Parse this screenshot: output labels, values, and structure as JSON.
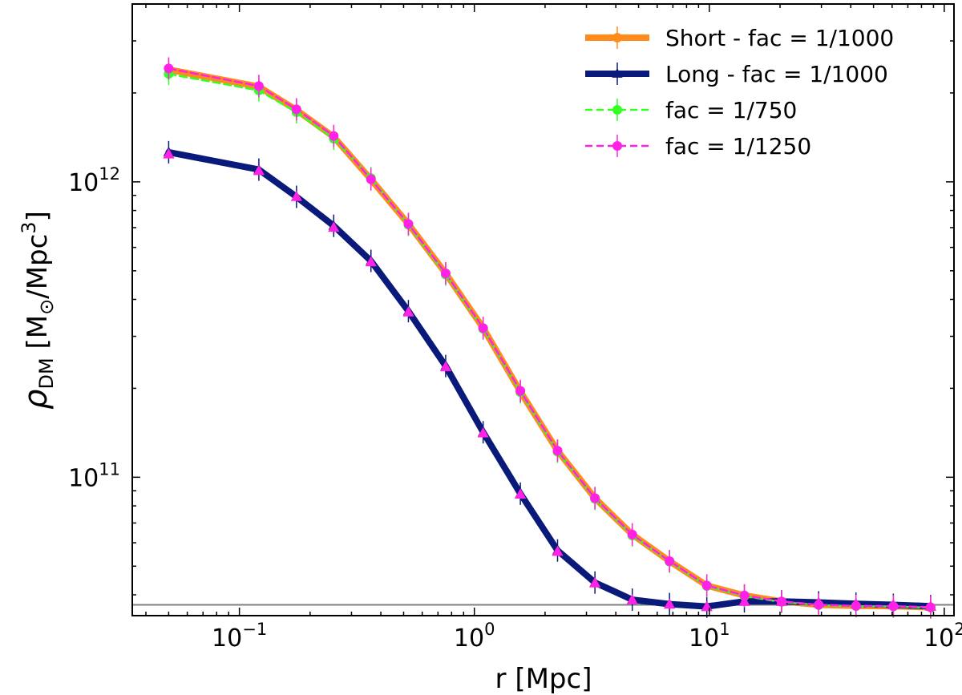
{
  "chart_data": {
    "type": "line",
    "xscale": "log",
    "yscale": "log",
    "xlabel_text": "r [Mpc]",
    "ylabel": {
      "symbol": "ρ",
      "subscript": "DM",
      "unit_open": " [M",
      "sun_symbol": "⊙",
      "unit_mid": "/Mpc",
      "superscript": "3",
      "unit_close": "]"
    },
    "xlim": [
      0.035,
      110
    ],
    "ylim": [
      34000000000.0,
      4000000000000.0
    ],
    "x_ticks": [
      {
        "value": 0.1,
        "base": "10",
        "exp": "−1"
      },
      {
        "value": 1,
        "base": "10",
        "exp": "0"
      },
      {
        "value": 10,
        "base": "10",
        "exp": "1"
      },
      {
        "value": 100,
        "base": "10",
        "exp": "2"
      }
    ],
    "y_ticks": [
      {
        "value": 100000000000.0,
        "base": "10",
        "exp": "11"
      },
      {
        "value": 1000000000000.0,
        "base": "10",
        "exp": "12"
      }
    ],
    "reference_line": {
      "y": 37000000000.0,
      "color": "#808080"
    },
    "x": [
      0.05,
      0.121,
      0.175,
      0.252,
      0.363,
      0.524,
      0.755,
      1.09,
      1.57,
      2.26,
      3.26,
      4.7,
      6.77,
      9.76,
      14.1,
      20.3,
      29.2,
      42.1,
      60.7,
      87.5
    ],
    "series": [
      {
        "name": "Short - fac = 1/1000",
        "color": "#ff8c1a",
        "style": "solid",
        "width": 8,
        "marker": "circle",
        "values": [
          2400000000000.0,
          2100000000000.0,
          1750000000000.0,
          1420000000000.0,
          1020000000000.0,
          720000000000.0,
          490000000000.0,
          320000000000.0,
          195000000000.0,
          123000000000.0,
          85000000000.0,
          64000000000.0,
          52000000000.0,
          43000000000.0,
          39800000000.0,
          38000000000.0,
          37000000000.0,
          36700000000.0,
          36600000000.0,
          36300000000.0
        ]
      },
      {
        "name": "Long - fac = 1/1000",
        "color": "#0a1a7a",
        "style": "solid",
        "width": 8,
        "marker": "triangle",
        "values": [
          1260000000000.0,
          1100000000000.0,
          890000000000.0,
          710000000000.0,
          540000000000.0,
          365000000000.0,
          238000000000.0,
          142000000000.0,
          88000000000.0,
          56500000000.0,
          44000000000.0,
          38500000000.0,
          37200000000.0,
          36500000000.0,
          38000000000.0,
          38000000000.0,
          37700000000.0,
          37300000000.0,
          37000000000.0,
          36600000000.0
        ]
      },
      {
        "name": "fac = 1/750",
        "color": "#33ff22",
        "style": "dashed",
        "width": 2.5,
        "marker": "circle",
        "values": [
          2320000000000.0,
          2040000000000.0,
          1720000000000.0,
          1400000000000.0,
          1030000000000.0,
          715000000000.0,
          485000000000.0,
          318000000000.0,
          194000000000.0,
          122000000000.0,
          84500000000.0,
          63500000000.0,
          51800000000.0,
          42800000000.0,
          39600000000.0,
          37800000000.0,
          36900000000.0,
          36600000000.0,
          36500000000.0,
          36200000000.0
        ]
      },
      {
        "name": "fac = 1/1250",
        "color": "#ff22e6",
        "style": "dashed",
        "width": 2.5,
        "marker": "circle",
        "values": [
          2420000000000.0,
          2110000000000.0,
          1760000000000.0,
          1430000000000.0,
          1020000000000.0,
          720000000000.0,
          490000000000.0,
          320000000000.0,
          196000000000.0,
          123000000000.0,
          85000000000.0,
          64000000000.0,
          52000000000.0,
          43000000000.0,
          39800000000.0,
          38000000000.0,
          37000000000.0,
          36700000000.0,
          36600000000.0,
          36300000000.0
        ]
      }
    ],
    "overlay_triangles": {
      "color": "#ff22e6",
      "values": [
        1240000000000.0,
        1090000000000.0,
        890000000000.0,
        700000000000.0,
        535000000000.0,
        362000000000.0,
        236000000000.0,
        141000000000.0,
        87500000000.0,
        56000000000.0,
        43800000000.0,
        38400000000.0,
        37100000000.0,
        36400000000.0,
        37900000000.0,
        37900000000.0,
        37600000000.0,
        37200000000.0,
        36900000000.0,
        36500000000.0
      ]
    },
    "legend_position": "top-right"
  }
}
